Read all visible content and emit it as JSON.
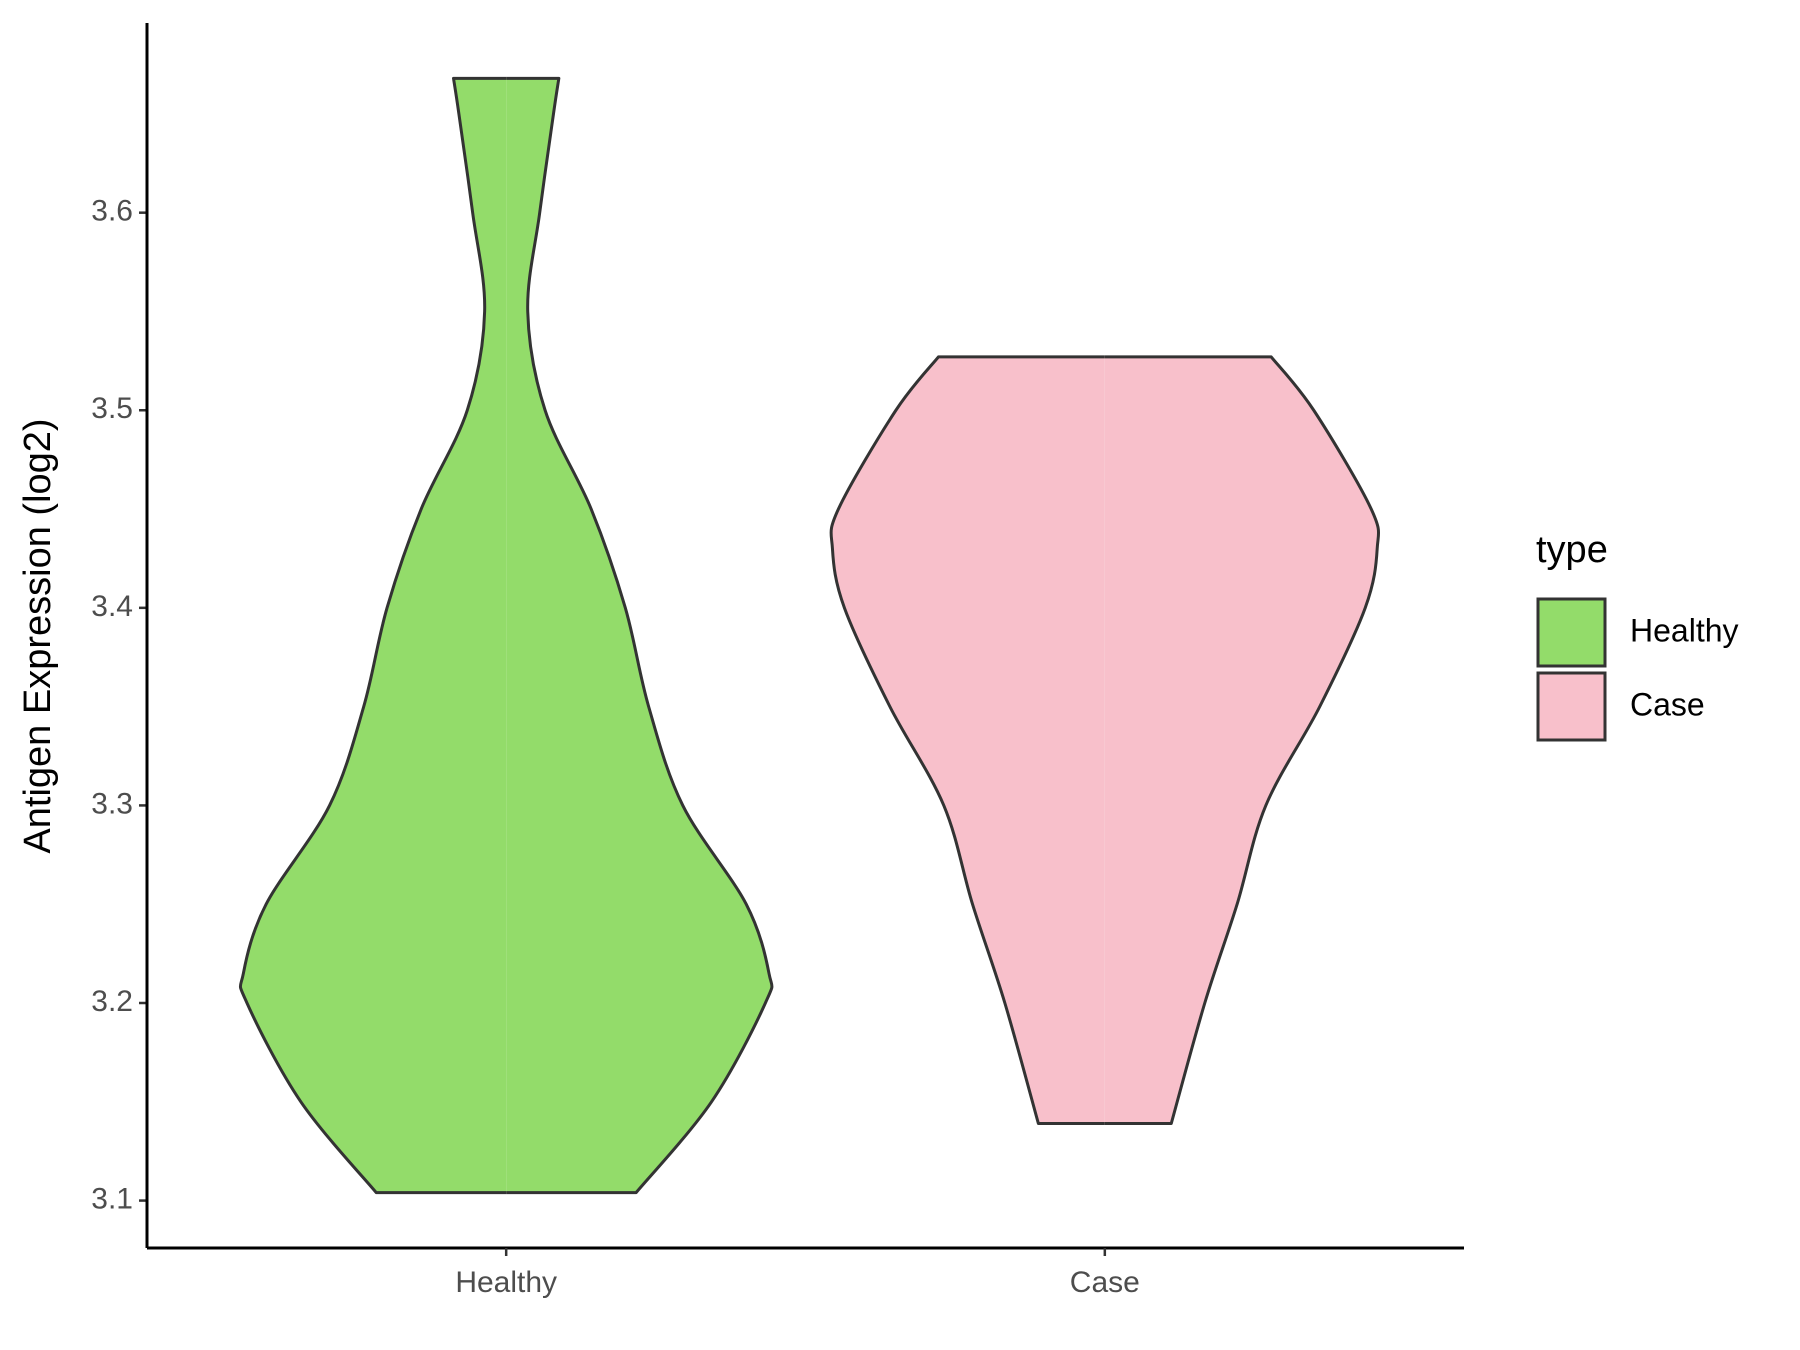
{
  "chart_data": {
    "type": "violin",
    "y_label": "Antigen Expression (log2)",
    "legend_title": "type",
    "categories": [
      "Healthy",
      "Case"
    ],
    "ylim": [
      3.076,
      3.696
    ],
    "yticks": [
      3.1,
      3.2,
      3.3,
      3.4,
      3.5,
      3.6
    ],
    "outline_color": "#333333",
    "series": [
      {
        "name": "Healthy",
        "color": "#93dc6a",
        "y": [
          3.104,
          3.15,
          3.2,
          3.215,
          3.25,
          3.3,
          3.35,
          3.4,
          3.45,
          3.5,
          3.55,
          3.6,
          3.65,
          3.668
        ],
        "width": [
          0.217,
          0.343,
          0.433,
          0.439,
          0.401,
          0.295,
          0.238,
          0.199,
          0.142,
          0.065,
          0.036,
          0.056,
          0.079,
          0.088
        ]
      },
      {
        "name": "Case",
        "color": "#f8c0cb",
        "y": [
          3.139,
          3.2,
          3.25,
          3.3,
          3.35,
          3.4,
          3.43,
          3.45,
          3.5,
          3.527
        ],
        "width": [
          0.111,
          0.167,
          0.221,
          0.269,
          0.359,
          0.435,
          0.455,
          0.445,
          0.349,
          0.278
        ]
      }
    ]
  }
}
